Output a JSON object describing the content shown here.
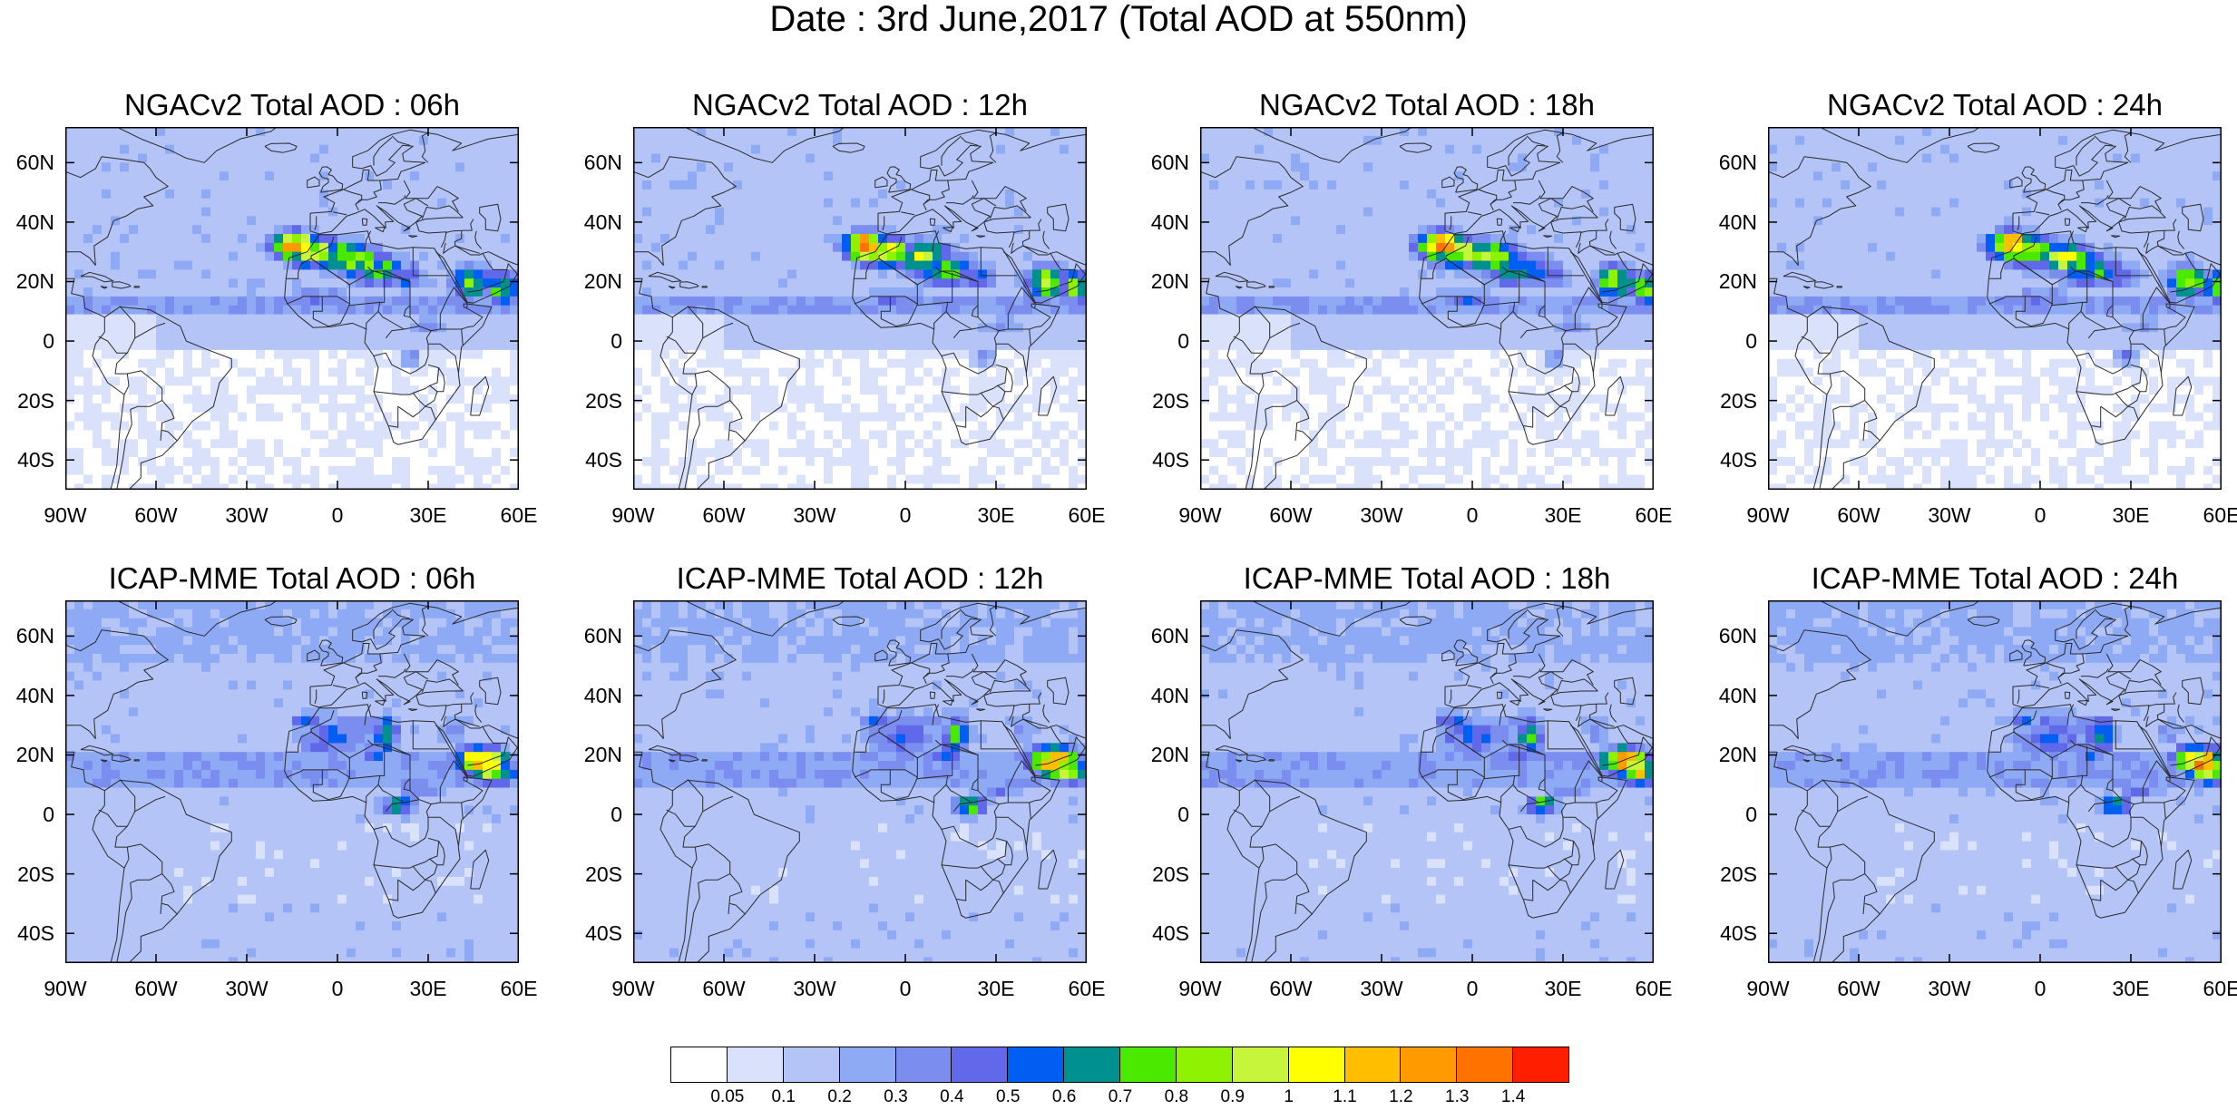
{
  "title": "Date : 3rd June,2017 (Total AOD at 550nm)",
  "lat_labels": [
    "60N",
    "40N",
    "20N",
    "0",
    "20S",
    "40S"
  ],
  "lon_labels": [
    "90W",
    "60W",
    "30W",
    "0",
    "30E",
    "60E"
  ],
  "panels": [
    {
      "title": "NGACv2 Total AOD : 06h",
      "model": "NGACv2",
      "hour": "06h"
    },
    {
      "title": "NGACv2 Total AOD : 12h",
      "model": "NGACv2",
      "hour": "12h"
    },
    {
      "title": "NGACv2 Total AOD : 18h",
      "model": "NGACv2",
      "hour": "18h"
    },
    {
      "title": "NGACv2 Total AOD : 24h",
      "model": "NGACv2",
      "hour": "24h"
    },
    {
      "title": "ICAP-MME Total AOD : 06h",
      "model": "ICAP-MME",
      "hour": "06h"
    },
    {
      "title": "ICAP-MME Total AOD : 12h",
      "model": "ICAP-MME",
      "hour": "12h"
    },
    {
      "title": "ICAP-MME Total AOD : 18h",
      "model": "ICAP-MME",
      "hour": "18h"
    },
    {
      "title": "ICAP-MME Total AOD : 24h",
      "model": "ICAP-MME",
      "hour": "24h"
    }
  ],
  "colorbar": {
    "colors": [
      "#ffffff",
      "#d9e1fb",
      "#b4c4f6",
      "#8eaaf5",
      "#7b8ef0",
      "#6169ea",
      "#005ff2",
      "#009090",
      "#4be800",
      "#8ef200",
      "#c7f53c",
      "#ffff00",
      "#ffbe00",
      "#ff9b00",
      "#ff7200",
      "#ff1f00"
    ],
    "labels": [
      "0.05",
      "0.1",
      "0.2",
      "0.3",
      "0.4",
      "0.5",
      "0.6",
      "0.7",
      "0.8",
      "0.9",
      "1",
      "1.1",
      "1.2",
      "1.3",
      "1.4"
    ]
  }
}
